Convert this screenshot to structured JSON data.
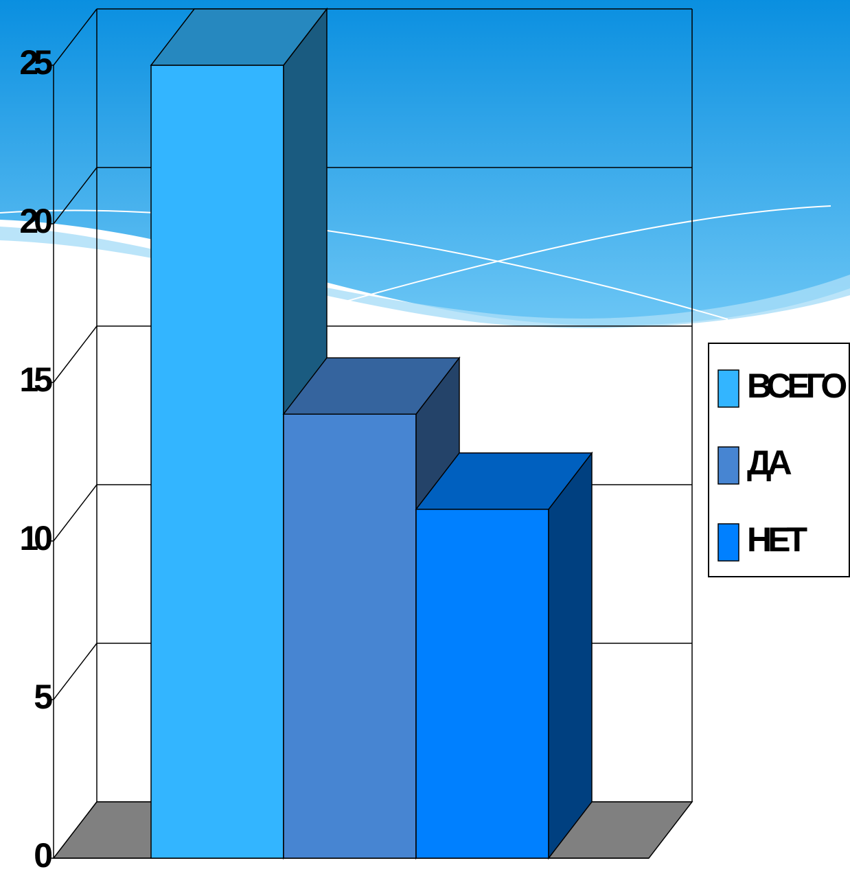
{
  "chart_data": {
    "type": "bar3d",
    "categories": [
      null
    ],
    "series": [
      {
        "name": "ВСЕГО",
        "color": "#33b5ff",
        "values": [
          25
        ]
      },
      {
        "name": "ДА",
        "color": "#4785d2",
        "values": [
          14
        ]
      },
      {
        "name": "НЕТ",
        "color": "#0080ff",
        "values": [
          11
        ]
      }
    ],
    "ylim": [
      0,
      25
    ],
    "yticks": [
      0,
      5,
      10,
      15,
      20,
      25
    ],
    "grid": true,
    "legend": "right"
  }
}
